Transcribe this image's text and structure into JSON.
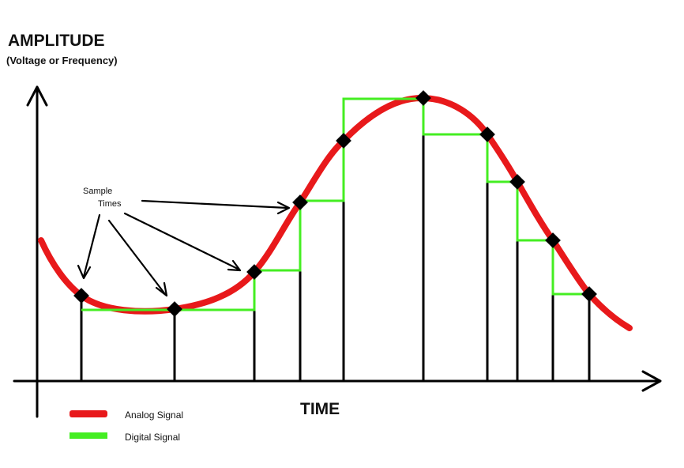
{
  "y_axis": {
    "title": "AMPLITUDE",
    "subtitle": "(Voltage or Frequency)"
  },
  "x_axis": {
    "title": "TIME"
  },
  "annotation": {
    "line1": "Sample",
    "line2": "Times"
  },
  "legend": [
    {
      "label": "Analog Signal",
      "color": "#e8191b"
    },
    {
      "label": "Digital Signal",
      "color": "#44ee22"
    }
  ],
  "colors": {
    "axis": "#000000",
    "analog": "#e8191b",
    "digital": "#44ee22",
    "marker": "#000000"
  }
}
